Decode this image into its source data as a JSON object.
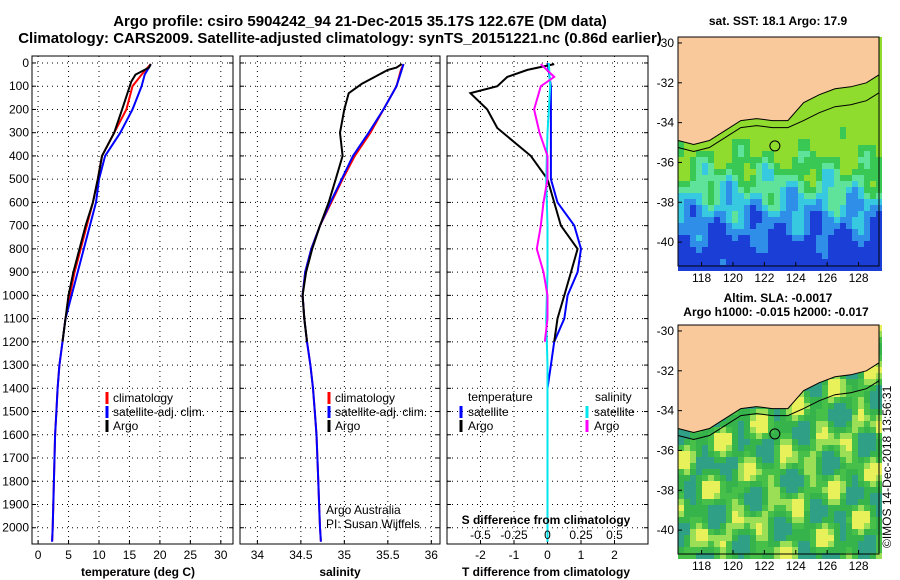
{
  "title_line1": "Argo profile: csiro 5904242_94 21-Dec-2015 35.17S 122.67E (DM data)",
  "title_line2": "Climatology: CARS2009. Satellite-adjusted climatology: synTS_20151221.nc (0.86d earlier)",
  "depth_ticks": [
    0,
    100,
    200,
    300,
    400,
    500,
    600,
    700,
    800,
    900,
    1000,
    1100,
    1200,
    1300,
    1400,
    1500,
    1600,
    1700,
    1800,
    1900,
    2000
  ],
  "colors": {
    "climatology": "#ff0000",
    "satellite": "#0000ff",
    "argo": "#000000",
    "sat_sal": "#00e5ee",
    "argo_sal": "#ff00ff",
    "land": "#f9c89b"
  },
  "chart_data": [
    {
      "id": "temperature",
      "type": "line",
      "xlabel": "temperature (deg C)",
      "xlim": [
        -1,
        32
      ],
      "ylim": [
        2070,
        -30
      ],
      "xticks": [
        0,
        5,
        10,
        15,
        20,
        25,
        30
      ],
      "grid": true,
      "legend": {
        "placement": "lower-middle",
        "entries": [
          "climatology",
          "satellite-adj. clim.",
          "Argo"
        ]
      },
      "series": [
        {
          "name": "climatology",
          "color": "#ff0000",
          "points": [
            [
              18.5,
              5
            ],
            [
              18,
              20
            ],
            [
              17,
              50
            ],
            [
              15.5,
              100
            ],
            [
              14.5,
              200
            ],
            [
              12.5,
              300
            ],
            [
              10.5,
              400
            ],
            [
              9.8,
              500
            ],
            [
              9,
              600
            ],
            [
              8,
              700
            ],
            [
              7,
              800
            ],
            [
              6,
              900
            ],
            [
              5.2,
              1000
            ],
            [
              4.5,
              1100
            ],
            [
              4,
              1200
            ],
            [
              3.5,
              1300
            ],
            [
              3.2,
              1400
            ],
            [
              3,
              1500
            ],
            [
              2.8,
              1600
            ],
            [
              2.7,
              1700
            ],
            [
              2.6,
              1800
            ],
            [
              2.5,
              1900
            ],
            [
              2.4,
              2000
            ],
            [
              2.3,
              2060
            ]
          ]
        },
        {
          "name": "satellite-adj. clim.",
          "color": "#0000ff",
          "points": [
            [
              18.5,
              5
            ],
            [
              18.2,
              20
            ],
            [
              17.5,
              50
            ],
            [
              17,
              100
            ],
            [
              15.5,
              200
            ],
            [
              13.5,
              300
            ],
            [
              11,
              400
            ],
            [
              10,
              500
            ],
            [
              9.5,
              600
            ],
            [
              8.5,
              700
            ],
            [
              7.5,
              800
            ],
            [
              6.5,
              900
            ],
            [
              5.5,
              1000
            ],
            [
              4.5,
              1100
            ],
            [
              4,
              1200
            ],
            [
              3.5,
              1300
            ],
            [
              3.2,
              1400
            ],
            [
              3,
              1500
            ],
            [
              2.8,
              1600
            ],
            [
              2.7,
              1700
            ],
            [
              2.6,
              1800
            ],
            [
              2.5,
              1900
            ],
            [
              2.4,
              2000
            ],
            [
              2.3,
              2060
            ]
          ]
        },
        {
          "name": "Argo",
          "color": "#000000",
          "points": [
            [
              18.5,
              5
            ],
            [
              18.2,
              20
            ],
            [
              16,
              50
            ],
            [
              15.3,
              80
            ],
            [
              14.8,
              120
            ],
            [
              13.8,
              200
            ],
            [
              12.5,
              300
            ],
            [
              10.5,
              400
            ],
            [
              9.8,
              500
            ],
            [
              9,
              600
            ],
            [
              7.8,
              700
            ],
            [
              6.8,
              800
            ],
            [
              5.8,
              900
            ],
            [
              5,
              1000
            ],
            [
              4.5,
              1100
            ],
            [
              4,
              1200
            ]
          ]
        }
      ]
    },
    {
      "id": "salinity",
      "type": "line",
      "xlabel": "salinity",
      "xlim": [
        33.8,
        36.1
      ],
      "ylim": [
        2070,
        -30
      ],
      "xticks": [
        34,
        34.5,
        35,
        35.5,
        36
      ],
      "grid": true,
      "legend": {
        "placement": "lower-middle",
        "entries": [
          "climatology",
          "satellite-adj. clim.",
          "Argo"
        ]
      },
      "annotations": [
        "Argo Australia",
        "PI: Susan Wijffels"
      ],
      "series": [
        {
          "name": "climatology",
          "color": "#ff0000",
          "points": [
            [
              35.68,
              5
            ],
            [
              35.65,
              30
            ],
            [
              35.6,
              100
            ],
            [
              35.45,
              200
            ],
            [
              35.3,
              300
            ],
            [
              35.12,
              400
            ],
            [
              34.98,
              500
            ],
            [
              34.85,
              600
            ],
            [
              34.72,
              700
            ],
            [
              34.62,
              800
            ],
            [
              34.55,
              900
            ],
            [
              34.52,
              1000
            ],
            [
              34.54,
              1100
            ],
            [
              34.57,
              1200
            ],
            [
              34.61,
              1300
            ],
            [
              34.64,
              1400
            ],
            [
              34.66,
              1500
            ],
            [
              34.68,
              1600
            ],
            [
              34.69,
              1700
            ],
            [
              34.7,
              1800
            ],
            [
              34.71,
              1900
            ],
            [
              34.72,
              2000
            ],
            [
              34.73,
              2060
            ]
          ]
        },
        {
          "name": "satellite-adj. clim.",
          "color": "#0000ff",
          "points": [
            [
              35.68,
              5
            ],
            [
              35.66,
              30
            ],
            [
              35.6,
              100
            ],
            [
              35.45,
              200
            ],
            [
              35.28,
              300
            ],
            [
              35.1,
              400
            ],
            [
              34.97,
              500
            ],
            [
              34.84,
              600
            ],
            [
              34.72,
              700
            ],
            [
              34.62,
              800
            ],
            [
              34.55,
              900
            ],
            [
              34.52,
              1000
            ],
            [
              34.54,
              1100
            ],
            [
              34.57,
              1200
            ],
            [
              34.61,
              1300
            ],
            [
              34.64,
              1400
            ],
            [
              34.66,
              1500
            ],
            [
              34.68,
              1600
            ],
            [
              34.69,
              1700
            ],
            [
              34.7,
              1800
            ],
            [
              34.71,
              1900
            ],
            [
              34.72,
              2000
            ],
            [
              34.73,
              2060
            ]
          ]
        },
        {
          "name": "Argo",
          "color": "#000000",
          "points": [
            [
              35.66,
              5
            ],
            [
              35.6,
              20
            ],
            [
              35.5,
              30
            ],
            [
              35.35,
              60
            ],
            [
              35.2,
              90
            ],
            [
              35.05,
              130
            ],
            [
              35.0,
              200
            ],
            [
              34.95,
              300
            ],
            [
              34.98,
              400
            ],
            [
              34.9,
              500
            ],
            [
              34.82,
              600
            ],
            [
              34.72,
              700
            ],
            [
              34.63,
              800
            ],
            [
              34.56,
              900
            ],
            [
              34.52,
              1000
            ],
            [
              34.54,
              1100
            ],
            [
              34.57,
              1200
            ]
          ]
        }
      ]
    },
    {
      "id": "difference",
      "type": "line",
      "xlabel": "T difference from climatology",
      "xlabel2": "S difference from climatology",
      "xlim": [
        -3,
        3
      ],
      "ylim": [
        2070,
        -30
      ],
      "xticks": [
        -2,
        -1,
        0,
        1,
        2
      ],
      "xticks2": [
        "-0.5",
        "-0.25",
        "0",
        "0.25",
        "0.5"
      ],
      "grid": true,
      "legend": {
        "left": {
          "heading": "temperature",
          "entries": [
            "satellite",
            "Argo"
          ]
        },
        "right": {
          "heading": "salinity",
          "entries": [
            "satellite",
            "Argo"
          ]
        }
      },
      "series": [
        {
          "name": "temperature satellite",
          "color": "#0000ff",
          "points": [
            [
              0,
              0
            ],
            [
              0.1,
              100
            ],
            [
              0.1,
              300
            ],
            [
              0.1,
              500
            ],
            [
              0.3,
              600
            ],
            [
              0.8,
              700
            ],
            [
              1,
              800
            ],
            [
              0.9,
              900
            ],
            [
              0.6,
              1000
            ],
            [
              0.5,
              1100
            ],
            [
              0.2,
              1200
            ],
            [
              0.1,
              1300
            ],
            [
              0,
              1400
            ],
            [
              0,
              1500
            ],
            [
              0,
              1600
            ],
            [
              0,
              1700
            ],
            [
              0,
              1800
            ],
            [
              0,
              1900
            ],
            [
              0,
              2000
            ],
            [
              0,
              2060
            ]
          ]
        },
        {
          "name": "temperature Argo",
          "color": "#000000",
          "points": [
            [
              0.2,
              5
            ],
            [
              -0.6,
              30
            ],
            [
              -1.2,
              60
            ],
            [
              -1.5,
              100
            ],
            [
              -2.3,
              130
            ],
            [
              -1.8,
              200
            ],
            [
              -1.5,
              280
            ],
            [
              -0.5,
              400
            ],
            [
              0,
              500
            ],
            [
              0.2,
              600
            ],
            [
              0.4,
              700
            ],
            [
              0.9,
              800
            ],
            [
              0.7,
              900
            ],
            [
              0.5,
              1000
            ],
            [
              0.3,
              1100
            ],
            [
              0.2,
              1200
            ]
          ]
        },
        {
          "name": "salinity satellite",
          "color": "#00e5ee",
          "points": [
            [
              0.01,
              0
            ],
            [
              0.02,
              100
            ],
            [
              0,
              300
            ],
            [
              -0.01,
              500
            ],
            [
              0,
              700
            ],
            [
              0,
              900
            ],
            [
              -0.01,
              1100
            ],
            [
              0,
              1300
            ],
            [
              0,
              1500
            ],
            [
              0,
              1700
            ],
            [
              0,
              1900
            ],
            [
              0,
              2060
            ]
          ]
        },
        {
          "name": "salinity Argo",
          "color": "#ff00ff",
          "points": [
            [
              -0.05,
              5
            ],
            [
              0.05,
              60
            ],
            [
              -0.05,
              100
            ],
            [
              -0.1,
              200
            ],
            [
              -0.06,
              300
            ],
            [
              0,
              400
            ],
            [
              0,
              500
            ],
            [
              -0.03,
              600
            ],
            [
              -0.05,
              700
            ],
            [
              -0.08,
              800
            ],
            [
              -0.03,
              900
            ],
            [
              0,
              1000
            ],
            [
              0,
              1100
            ],
            [
              -0.02,
              1200
            ]
          ]
        }
      ]
    }
  ],
  "maps": [
    {
      "id": "sst",
      "title": "sat. SST: 18.1 Argo: 17.9",
      "yticks": [
        "-30",
        "-32",
        "-34",
        "-36",
        "-38",
        "-40"
      ],
      "xticks": [
        "118",
        "120",
        "122",
        "124",
        "126",
        "128"
      ]
    },
    {
      "id": "sla",
      "title": "Altim. SLA: -0.0017",
      "subtitle": "Argo h1000: -0.015 h2000: -0.017",
      "yticks": [
        "-30",
        "-32",
        "-34",
        "-36",
        "-38",
        "-40"
      ],
      "xticks": [
        "118",
        "120",
        "122",
        "124",
        "126",
        "128"
      ]
    }
  ],
  "footer": "©IMOS 14-Dec-2018 13:56:31"
}
